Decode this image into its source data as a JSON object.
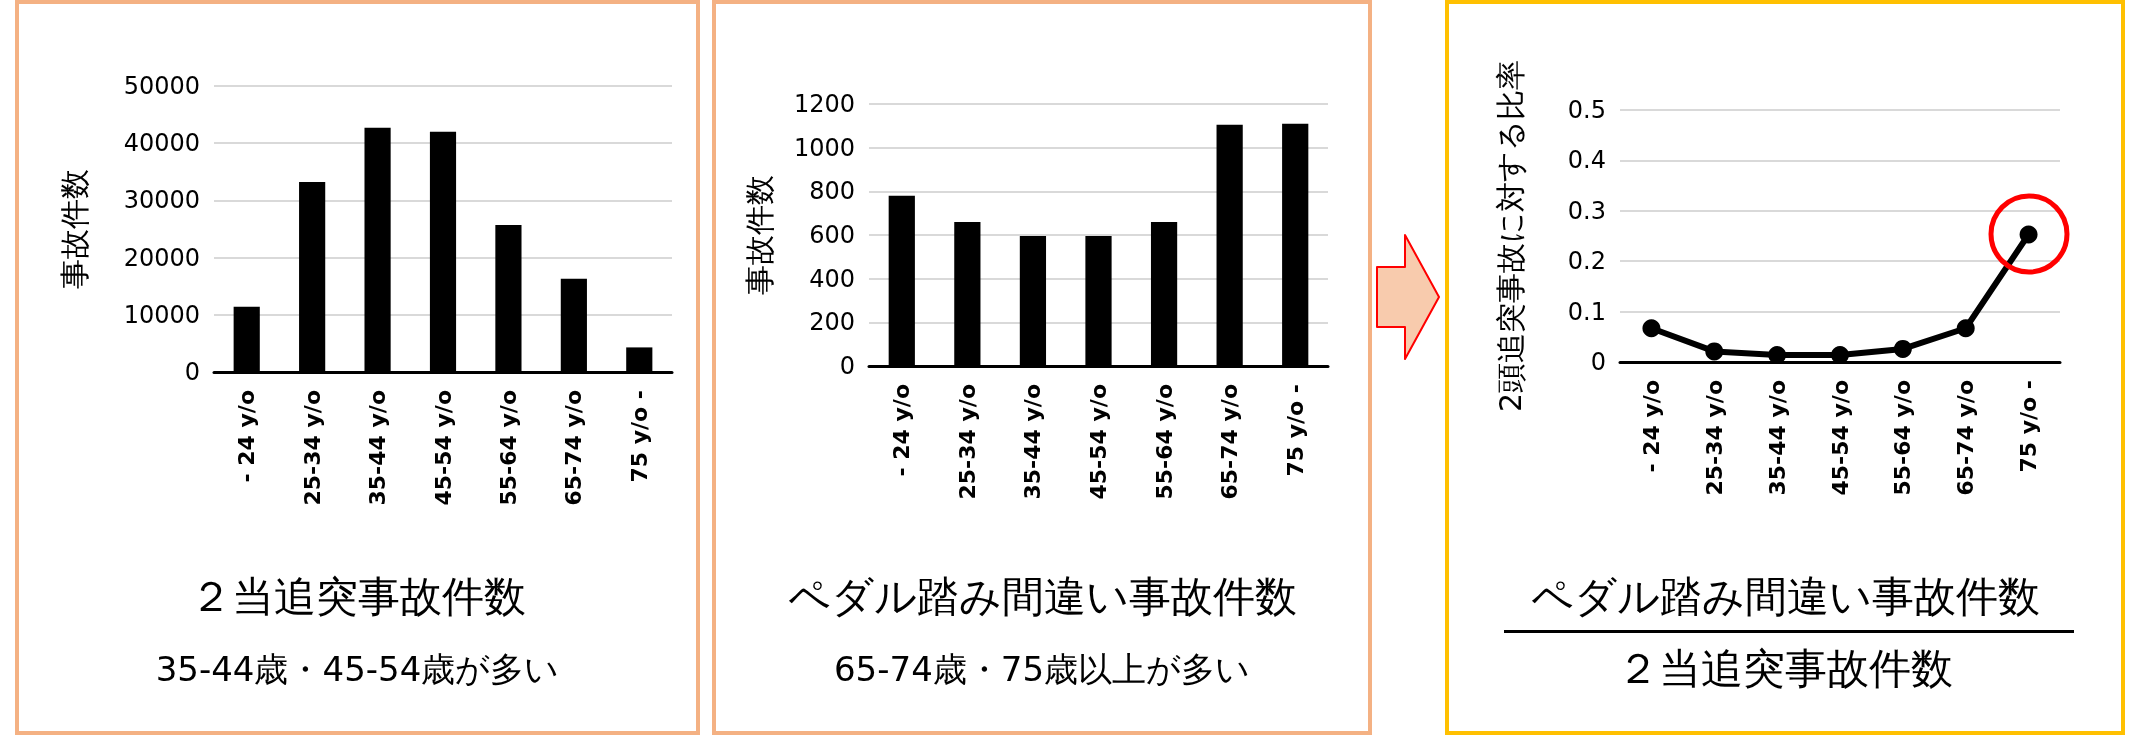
{
  "chart_data": [
    {
      "type": "bar",
      "title": "２当追突事故件数",
      "subtitle": "35-44歳・45-54歳が多い",
      "ylabel": "事故件数",
      "categories": [
        "- 24 y/o",
        "25-34 y/o",
        "35-44 y/o",
        "45-54 y/o",
        "55-64 y/o",
        "65-74 y/o",
        "75 y/o -"
      ],
      "series": [
        {
          "color": "#000000",
          "values": [
            11400,
            33200,
            42700,
            42000,
            25700,
            16300,
            4300
          ]
        }
      ],
      "ylim": [
        0,
        50000
      ],
      "yticks": [
        0,
        10000,
        20000,
        30000,
        40000,
        50000
      ],
      "grid": "y"
    },
    {
      "type": "bar",
      "title": "ペダル踏み間違い事故件数",
      "subtitle": "65-74歳・75歳以上が多い",
      "ylabel": "事故件数",
      "categories": [
        "- 24 y/o",
        "25-34 y/o",
        "35-44 y/o",
        "45-54 y/o",
        "55-64 y/o",
        "65-74 y/o",
        "75 y/o -"
      ],
      "series": [
        {
          "color": "#000000",
          "values": [
            780,
            660,
            595,
            595,
            660,
            1105,
            1110
          ]
        }
      ],
      "ylim": [
        0,
        1200
      ],
      "yticks": [
        0,
        200,
        400,
        600,
        800,
        1000,
        1200
      ],
      "grid": "y"
    },
    {
      "type": "line",
      "title": "ペダル踏み間違い事故件数",
      "subtitle": "２当追突事故件数",
      "ylabel": "2頭追突事故に対する比率",
      "categories": [
        "- 24 y/o",
        "25-34 y/o",
        "35-44 y/o",
        "45-54 y/o",
        "55-64 y/o",
        "65-74 y/o",
        "75 y/o -"
      ],
      "series": [
        {
          "color": "#000000",
          "values": [
            0.067,
            0.021,
            0.014,
            0.014,
            0.026,
            0.067,
            0.253
          ]
        }
      ],
      "ylim": [
        0,
        0.5
      ],
      "yticks": [
        0,
        0.1,
        0.2,
        0.3,
        0.4,
        0.5
      ],
      "grid": "y",
      "marker": "circle",
      "line_style": "solid"
    }
  ]
}
